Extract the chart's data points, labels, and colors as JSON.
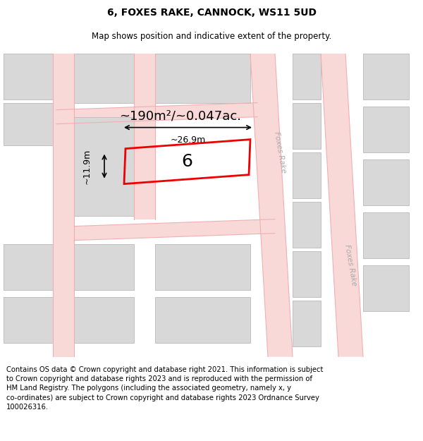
{
  "title": "6, FOXES RAKE, CANNOCK, WS11 5UD",
  "subtitle": "Map shows position and indicative extent of the property.",
  "footer": "Contains OS data © Crown copyright and database right 2021. This information is subject\nto Crown copyright and database rights 2023 and is reproduced with the permission of\nHM Land Registry. The polygons (including the associated geometry, namely x, y\nco-ordinates) are subject to Crown copyright and database rights 2023 Ordnance Survey\n100026316.",
  "background_color": "#ffffff",
  "map_bg": "#f9f9f9",
  "road_color": "#f0b0b0",
  "road_fill": "#f9d8d8",
  "building_fill": "#d8d8d8",
  "building_edge": "#c0c0c0",
  "highlight_color": "#ee0000",
  "area_text": "~190m²/~0.047ac.",
  "number_label": "6",
  "width_label": "~26.9m",
  "height_label": "~11.9m",
  "street_label_1": "Foxes Rake",
  "street_label_2": "Foxes Rake",
  "title_fontsize": 10,
  "subtitle_fontsize": 8.5,
  "footer_fontsize": 7.2
}
